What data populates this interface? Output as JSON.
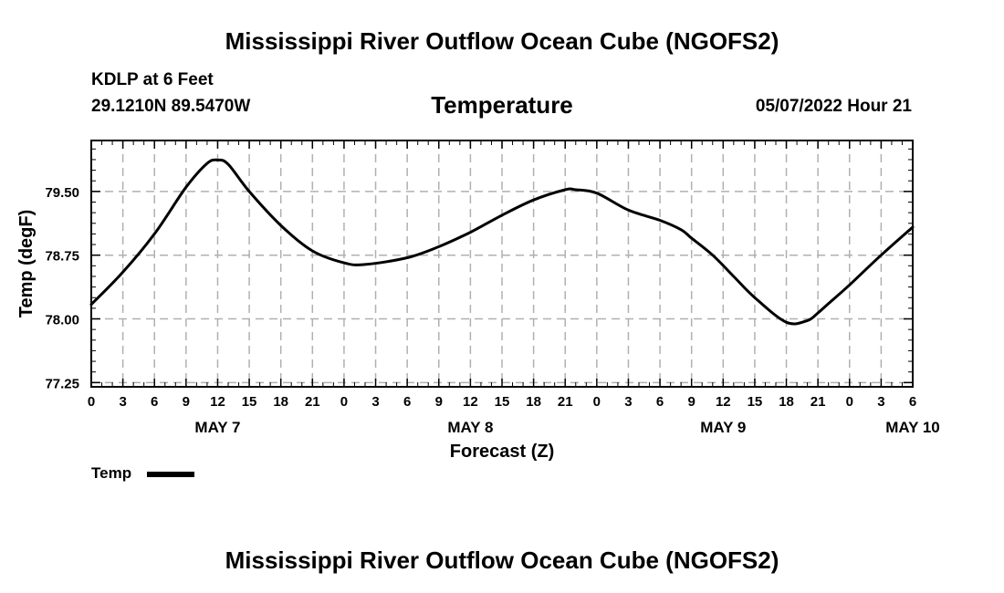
{
  "header": {
    "title": "Mississippi River Outflow Ocean Cube (NGOFS2)",
    "station": "KDLP at 6 Feet",
    "coords": "29.1210N  89.5470W",
    "variable": "Temperature",
    "datetime": "05/07/2022 Hour 21"
  },
  "footer": {
    "title": "Mississippi River Outflow Ocean Cube (NGOFS2)"
  },
  "legend": {
    "label": "Temp"
  },
  "chart_data": {
    "type": "line",
    "title": "Temperature",
    "xlabel": "Forecast (Z)",
    "ylabel": "Temp (degF)",
    "xlim": [
      0,
      78
    ],
    "ylim": [
      77.2,
      80.1
    ],
    "yticks": [
      77.25,
      78.0,
      78.75,
      79.5
    ],
    "ytick_labels": [
      "77.25",
      "78.00",
      "78.75",
      "79.50"
    ],
    "xticks": [
      0,
      3,
      6,
      9,
      12,
      15,
      18,
      21,
      24,
      27,
      30,
      33,
      36,
      39,
      42,
      45,
      48,
      51,
      54,
      57,
      60,
      63,
      66,
      69,
      72,
      75,
      78
    ],
    "xtick_labels": [
      "0",
      "3",
      "6",
      "9",
      "12",
      "15",
      "18",
      "21",
      "0",
      "3",
      "6",
      "9",
      "12",
      "15",
      "18",
      "21",
      "0",
      "3",
      "6",
      "9",
      "12",
      "15",
      "18",
      "21",
      "0",
      "3",
      "6"
    ],
    "day_labels": [
      {
        "x": 12,
        "label": "MAY 7"
      },
      {
        "x": 36,
        "label": "MAY 8"
      },
      {
        "x": 60,
        "label": "MAY 9"
      },
      {
        "x": 78,
        "label": "MAY 10"
      }
    ],
    "grid": true,
    "legend_position": "bottom-left",
    "series": [
      {
        "name": "Temp",
        "x": [
          0,
          3,
          6,
          9,
          11,
          12,
          13,
          15,
          18,
          21,
          24,
          26,
          30,
          33,
          36,
          39,
          42,
          45,
          46,
          48,
          51,
          54,
          56,
          57,
          59,
          61,
          63,
          66,
          68,
          69,
          70,
          72,
          75,
          78
        ],
        "values": [
          78.17,
          78.55,
          79.0,
          79.55,
          79.83,
          79.87,
          79.82,
          79.5,
          79.1,
          78.8,
          78.66,
          78.64,
          78.72,
          78.85,
          79.02,
          79.22,
          79.4,
          79.52,
          79.52,
          79.48,
          79.28,
          79.16,
          79.05,
          78.95,
          78.75,
          78.5,
          78.25,
          77.96,
          77.98,
          78.07,
          78.18,
          78.4,
          78.75,
          79.08
        ]
      }
    ]
  }
}
